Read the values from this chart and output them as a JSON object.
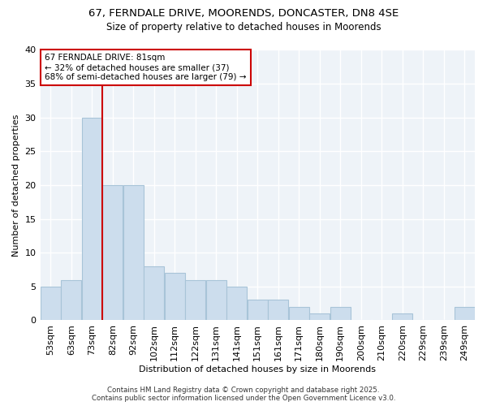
{
  "title_line1": "67, FERNDALE DRIVE, MOORENDS, DONCASTER, DN8 4SE",
  "title_line2": "Size of property relative to detached houses in Moorends",
  "xlabel": "Distribution of detached houses by size in Moorends",
  "ylabel": "Number of detached properties",
  "categories": [
    "53sqm",
    "63sqm",
    "73sqm",
    "82sqm",
    "92sqm",
    "102sqm",
    "112sqm",
    "122sqm",
    "131sqm",
    "141sqm",
    "151sqm",
    "161sqm",
    "171sqm",
    "180sqm",
    "190sqm",
    "200sqm",
    "210sqm",
    "220sqm",
    "229sqm",
    "239sqm",
    "249sqm"
  ],
  "values": [
    5,
    6,
    30,
    20,
    20,
    8,
    7,
    6,
    6,
    5,
    3,
    3,
    2,
    1,
    2,
    0,
    0,
    1,
    0,
    0,
    2
  ],
  "bar_color": "#ccdded",
  "bar_edge_color": "#a8c4d8",
  "vline_position": 2.5,
  "vline_color": "#cc0000",
  "annotation_text": "67 FERNDALE DRIVE: 81sqm\n← 32% of detached houses are smaller (37)\n68% of semi-detached houses are larger (79) →",
  "annotation_box_edge_color": "#cc0000",
  "plot_bg_color": "#eef3f8",
  "fig_bg_color": "#ffffff",
  "ylim": [
    0,
    40
  ],
  "yticks": [
    0,
    5,
    10,
    15,
    20,
    25,
    30,
    35,
    40
  ],
  "footer_line1": "Contains HM Land Registry data © Crown copyright and database right 2025.",
  "footer_line2": "Contains public sector information licensed under the Open Government Licence v3.0."
}
